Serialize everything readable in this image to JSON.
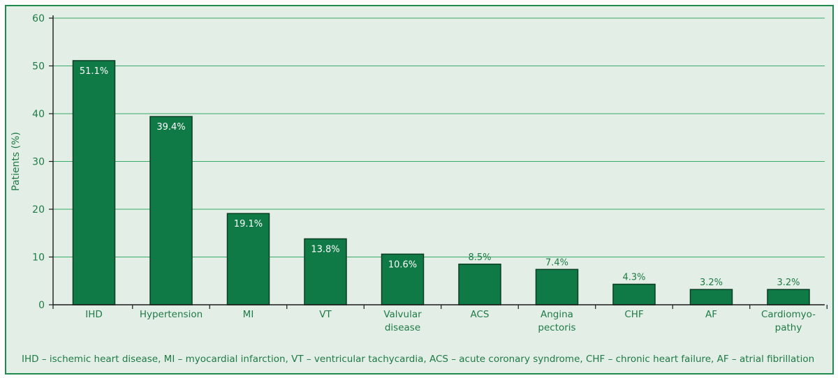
{
  "chart_data": {
    "type": "bar",
    "ylabel": "Patients (%)",
    "ylim": [
      0,
      60
    ],
    "yticks": [
      0,
      10,
      20,
      30,
      40,
      50,
      60
    ],
    "grid": true,
    "categories": [
      [
        "IHD"
      ],
      [
        "Hypertension"
      ],
      [
        "MI"
      ],
      [
        "VT"
      ],
      [
        "Valvular",
        "disease"
      ],
      [
        "ACS"
      ],
      [
        "Angina",
        "pectoris"
      ],
      [
        "CHF"
      ],
      [
        "AF"
      ],
      [
        "Cardiomyo-",
        "pathy"
      ]
    ],
    "values": [
      51.1,
      39.4,
      19.1,
      13.8,
      10.6,
      8.5,
      7.4,
      4.3,
      3.2,
      3.2
    ],
    "data_labels": [
      "51.1%",
      "39.4%",
      "19.1%",
      "13.8%",
      "10.6%",
      "8.5%",
      "7.4%",
      "4.3%",
      "3.2%",
      "3.2%"
    ],
    "colors": {
      "bar": "#0f7a45",
      "bar_edge": "#0a3d22",
      "text": "#1e7a45",
      "grid": "#3aa86a",
      "axis": "#1a1a1a",
      "inside_label": "#ffffff"
    }
  },
  "footnote": "IHD – ischemic heart disease, MI – myocardial infarction, VT – ventricular tachycardia, ACS – acute coronary syndrome, CHF – chronic heart failure, AF – atrial fibrillation"
}
